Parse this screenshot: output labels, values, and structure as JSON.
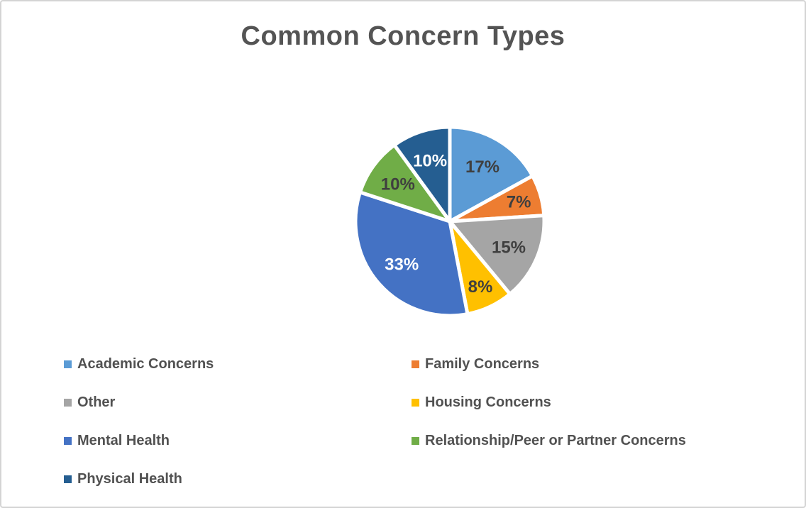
{
  "window": {
    "background": "#ffffff",
    "border_color": "#d4d4d4"
  },
  "chart_data": {
    "type": "pie",
    "title": "Common Concern Types",
    "title_color": "#545454",
    "direction": "clockwise",
    "start_angle_deg": 0,
    "labels_style": "percent-inside",
    "legend_position": "bottom",
    "legend_columns": 2,
    "legend_text_color": "#515151",
    "slices": [
      {
        "label": "Academic Concerns",
        "value": 17,
        "pct_label": "17%",
        "color": "#5B9BD5",
        "pct_label_color": "#3F3F3F"
      },
      {
        "label": "Family Concerns",
        "value": 7,
        "pct_label": "7%",
        "color": "#ED7D31",
        "pct_label_color": "#3F3F3F"
      },
      {
        "label": "Other",
        "value": 15,
        "pct_label": "15%",
        "color": "#A5A5A5",
        "pct_label_color": "#3F3F3F"
      },
      {
        "label": "Housing Concerns",
        "value": 8,
        "pct_label": "8%",
        "color": "#FFC000",
        "pct_label_color": "#3F3F3F"
      },
      {
        "label": "Mental Health",
        "value": 33,
        "pct_label": "33%",
        "color": "#4472C4",
        "pct_label_color": "#FFFFFF"
      },
      {
        "label": "Relationship/Peer or Partner Concerns",
        "value": 10,
        "pct_label": "10%",
        "color": "#70AD47",
        "pct_label_color": "#3F3F3F"
      },
      {
        "label": "Physical Health",
        "value": 10,
        "pct_label": "10%",
        "color": "#255E91",
        "pct_label_color": "#FFFFFF"
      }
    ]
  }
}
